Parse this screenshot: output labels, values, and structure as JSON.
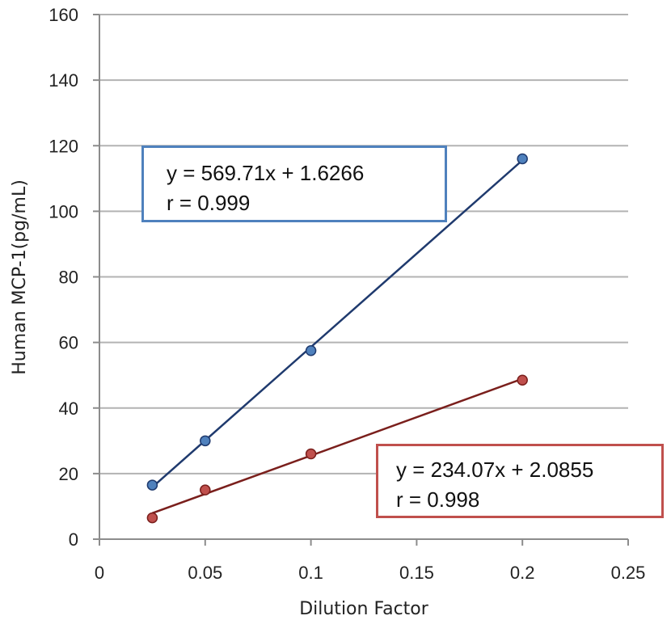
{
  "chart_data": {
    "type": "scatter",
    "title": "",
    "xlabel": "Dilution Factor",
    "ylabel": "Human MCP-1(pg/mL)",
    "xlim": [
      0,
      0.25
    ],
    "ylim": [
      0,
      160
    ],
    "x_ticks": [
      "0",
      "0.05",
      "0.1",
      "0.15",
      "0.2",
      "0.25"
    ],
    "y_ticks": [
      "0",
      "20",
      "40",
      "60",
      "80",
      "100",
      "120",
      "140",
      "160"
    ],
    "grid": "horizontal",
    "trendlines": true,
    "series": [
      {
        "color": "#4f81bd",
        "line_color": "#1f3a6e",
        "x": [
          0.025,
          0.05,
          0.1,
          0.2
        ],
        "y": [
          16.5,
          30,
          57.5,
          116
        ],
        "equation": "y = 569.71x + 1.6266",
        "r": "r = 0.999",
        "slope": 569.71,
        "intercept": 1.6266
      },
      {
        "color": "#c0504d",
        "line_color": "#7a1f1c",
        "x": [
          0.025,
          0.05,
          0.1,
          0.2
        ],
        "y": [
          6.5,
          15,
          26,
          48.5
        ],
        "equation": "y = 234.07x + 2.0855",
        "r": "r = 0.998",
        "slope": 234.07,
        "intercept": 2.0855
      }
    ]
  }
}
